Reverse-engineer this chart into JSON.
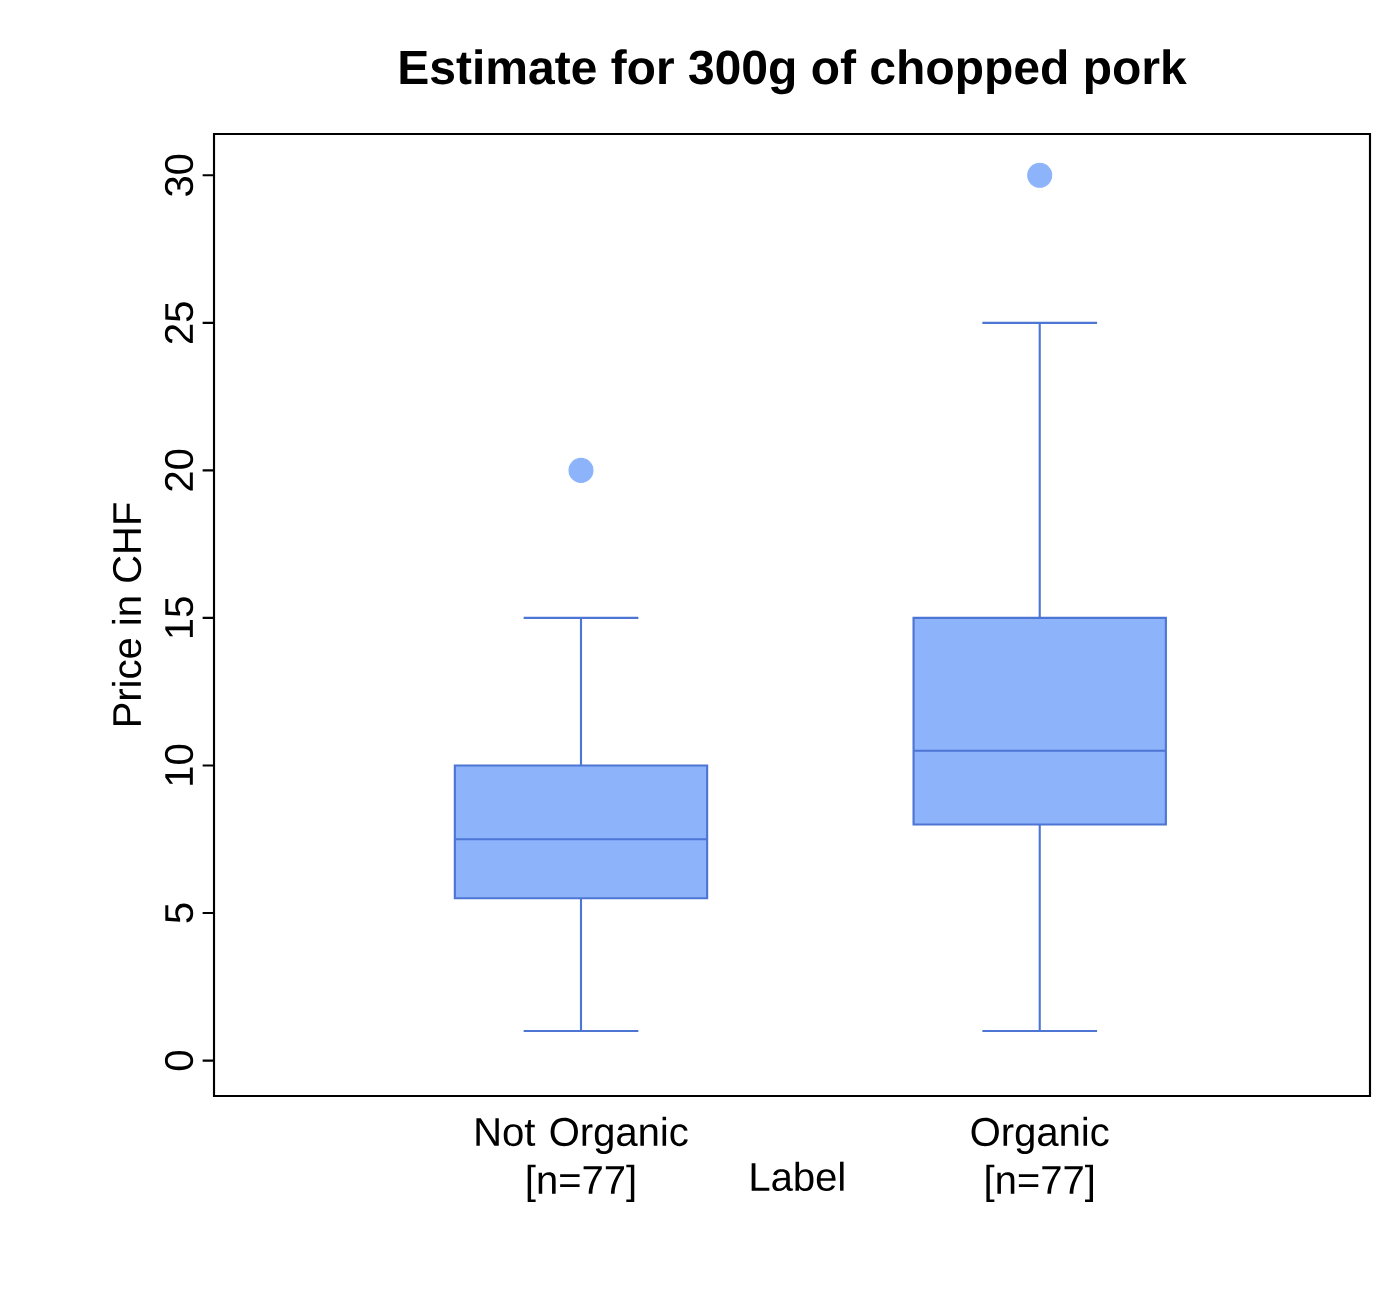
{
  "chart_data": {
    "type": "box",
    "title": "Estimate for 300g of chopped pork",
    "xlabel": "Label",
    "ylabel": "Price in CHF",
    "categories": [
      "Not Organic [n=77]",
      "Organic [n=77]"
    ],
    "series": [
      {
        "color": "#8db4fa",
        "boxes": [
          {
            "low": 1,
            "q1": 5.5,
            "median": 7.5,
            "q3": 10,
            "high": 15,
            "outliers": [
              20
            ]
          },
          {
            "low": 1,
            "q1": 8,
            "median": 10.5,
            "q3": 15,
            "high": 25,
            "outliers": [
              30
            ]
          }
        ]
      }
    ],
    "ylim": [
      -1.2,
      31.4
    ],
    "yticks": [
      0,
      5,
      10,
      15,
      20,
      25,
      30
    ],
    "grid": false
  }
}
